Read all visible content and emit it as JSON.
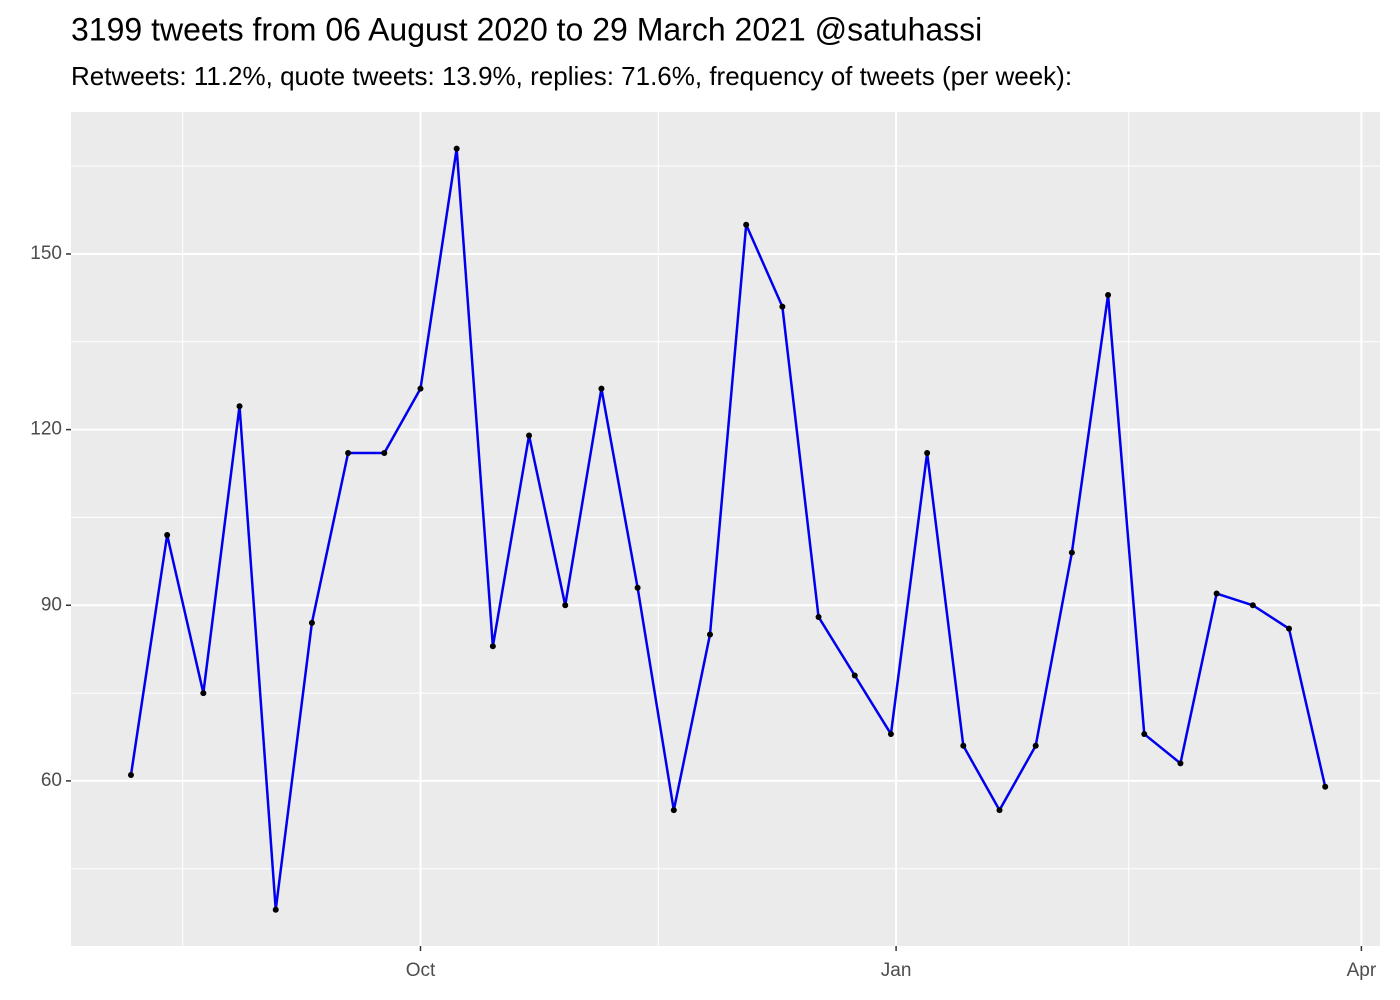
{
  "chart_data": {
    "type": "line",
    "title": "3199 tweets from 06 August 2020 to 29 March 2021 @satuhassi",
    "subtitle": "Retweets: 11.2%, quote tweets: 13.9%, replies: 71.6%, frequency of tweets (per week):",
    "x": [
      0,
      7,
      14,
      21,
      28,
      35,
      42,
      49,
      56,
      63,
      70,
      77,
      84,
      91,
      98,
      105,
      112,
      119,
      126,
      133,
      140,
      147,
      154,
      161,
      168,
      175,
      182,
      189,
      196,
      203,
      210,
      217,
      224,
      231
    ],
    "values": [
      61,
      102,
      75,
      124,
      38,
      87,
      116,
      116,
      127,
      168,
      83,
      119,
      90,
      127,
      93,
      55,
      85,
      155,
      141,
      88,
      78,
      68,
      116,
      66,
      55,
      66,
      99,
      143,
      68,
      63,
      92,
      90,
      86,
      59
    ],
    "color": "#0000ee",
    "point_color": "#000000",
    "xlim": [
      -11.6,
      241.6
    ],
    "xticks": [
      {
        "value": 56,
        "label": "Oct"
      },
      {
        "value": 148,
        "label": "Jan"
      },
      {
        "value": 238,
        "label": "Apr"
      }
    ],
    "xminor": [
      10,
      102,
      193
    ],
    "ylim": [
      31.8,
      174.25
    ],
    "yticks": [
      60,
      90,
      120,
      150
    ],
    "yminor": [
      45,
      75,
      105,
      135,
      165
    ],
    "grid": true
  }
}
